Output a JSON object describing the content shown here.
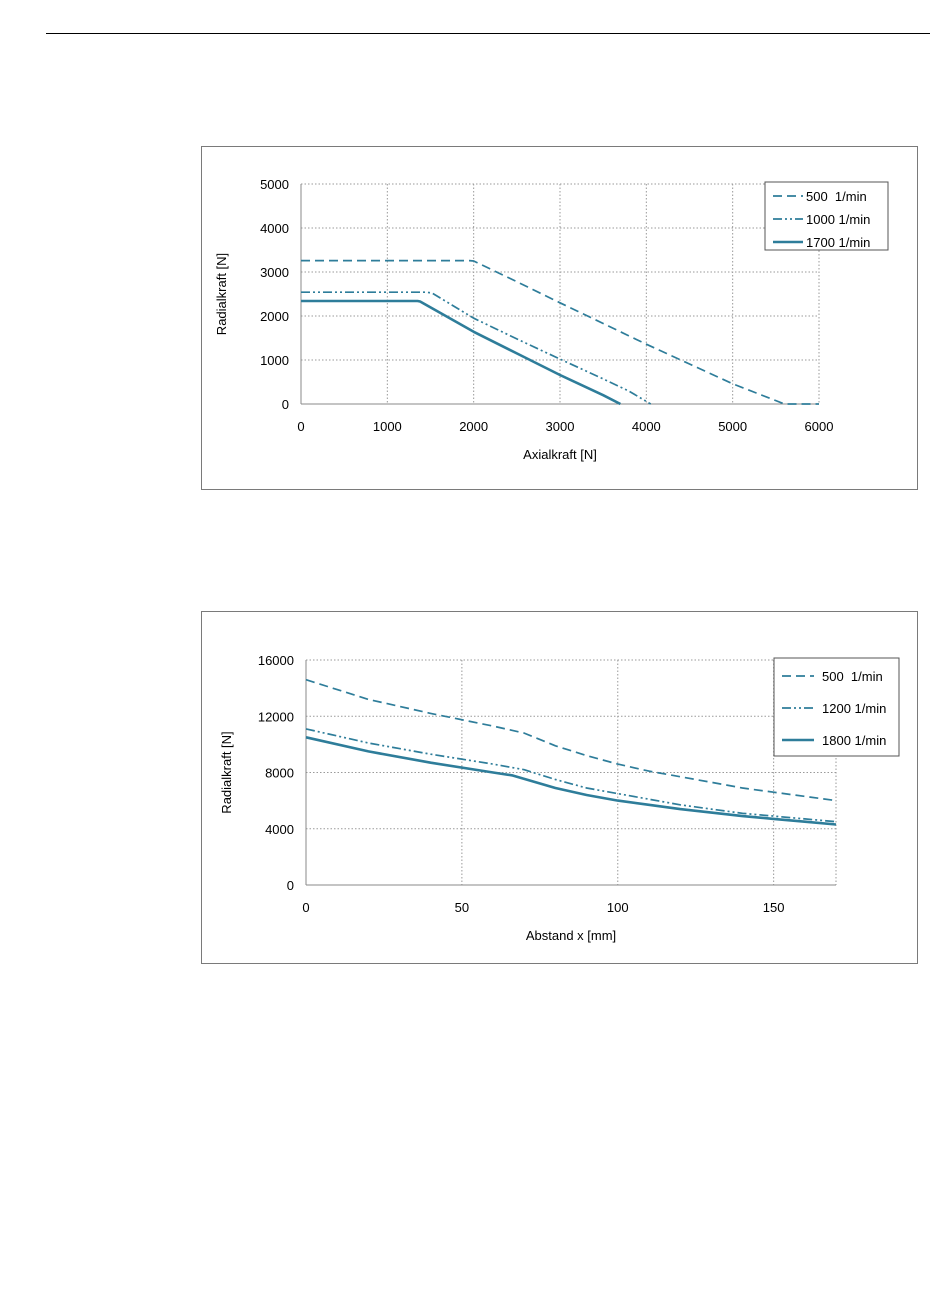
{
  "colors": {
    "series": "#2e7d9a",
    "grid": "#9a9a9a",
    "frame": "#7a7a7a",
    "axis": "#8a8a8a"
  },
  "chart_data": [
    {
      "type": "line",
      "xlabel": "Axialkraft [N]",
      "ylabel": "Radialkraft [N]",
      "xlim": [
        0,
        6000
      ],
      "ylim": [
        0,
        5000
      ],
      "xticks": [
        0,
        1000,
        2000,
        3000,
        4000,
        5000,
        6000
      ],
      "yticks": [
        0,
        1000,
        2000,
        3000,
        4000,
        5000
      ],
      "grid": true,
      "legend_position": "top-right",
      "series": [
        {
          "name": "500  1/min",
          "style": "dashed",
          "x": [
            0,
            1950,
            2000,
            2500,
            3000,
            3500,
            4000,
            4500,
            5000,
            5600,
            6000
          ],
          "y": [
            3260,
            3260,
            3250,
            2780,
            2300,
            1830,
            1360,
            910,
            460,
            0,
            0
          ]
        },
        {
          "name": "1000 1/min",
          "style": "dashdotdot",
          "x": [
            0,
            1450,
            1520,
            2000,
            2500,
            3000,
            3500,
            3800,
            4050
          ],
          "y": [
            2540,
            2540,
            2520,
            1950,
            1480,
            1020,
            570,
            290,
            0
          ]
        },
        {
          "name": "1700 1/min",
          "style": "solid",
          "x": [
            0,
            1350,
            1380,
            2000,
            2500,
            3000,
            3500,
            3700
          ],
          "y": [
            2340,
            2340,
            2330,
            1640,
            1150,
            660,
            200,
            0
          ]
        }
      ]
    },
    {
      "type": "line",
      "xlabel": "Abstand x [mm]",
      "ylabel": "Radialkraft [N]",
      "xlim": [
        0,
        170
      ],
      "ylim": [
        0,
        16000
      ],
      "xticks": [
        0,
        50,
        100,
        150
      ],
      "yticks": [
        0,
        4000,
        8000,
        12000,
        16000
      ],
      "grid": true,
      "legend_position": "top-right",
      "series": [
        {
          "name": "500  1/min",
          "style": "dashed",
          "x": [
            0,
            20,
            40,
            60,
            70,
            80,
            90,
            100,
            110,
            120,
            130,
            140,
            150,
            160,
            170
          ],
          "y": [
            14600,
            13200,
            12200,
            11300,
            10800,
            9900,
            9200,
            8600,
            8100,
            7700,
            7300,
            6900,
            6600,
            6300,
            6000
          ]
        },
        {
          "name": "1200 1/min",
          "style": "dashdotdot",
          "x": [
            0,
            20,
            40,
            60,
            70,
            80,
            90,
            100,
            110,
            120,
            130,
            140,
            150,
            160,
            170
          ],
          "y": [
            11100,
            10100,
            9300,
            8600,
            8200,
            7500,
            6900,
            6500,
            6100,
            5700,
            5400,
            5100,
            4900,
            4700,
            4500
          ]
        },
        {
          "name": "1800 1/min",
          "style": "solid",
          "x": [
            0,
            20,
            40,
            60,
            66,
            80,
            90,
            100,
            110,
            120,
            130,
            140,
            150,
            160,
            170
          ],
          "y": [
            10500,
            9500,
            8700,
            8000,
            7800,
            6900,
            6400,
            6000,
            5700,
            5400,
            5150,
            4900,
            4700,
            4500,
            4300
          ]
        }
      ]
    }
  ]
}
